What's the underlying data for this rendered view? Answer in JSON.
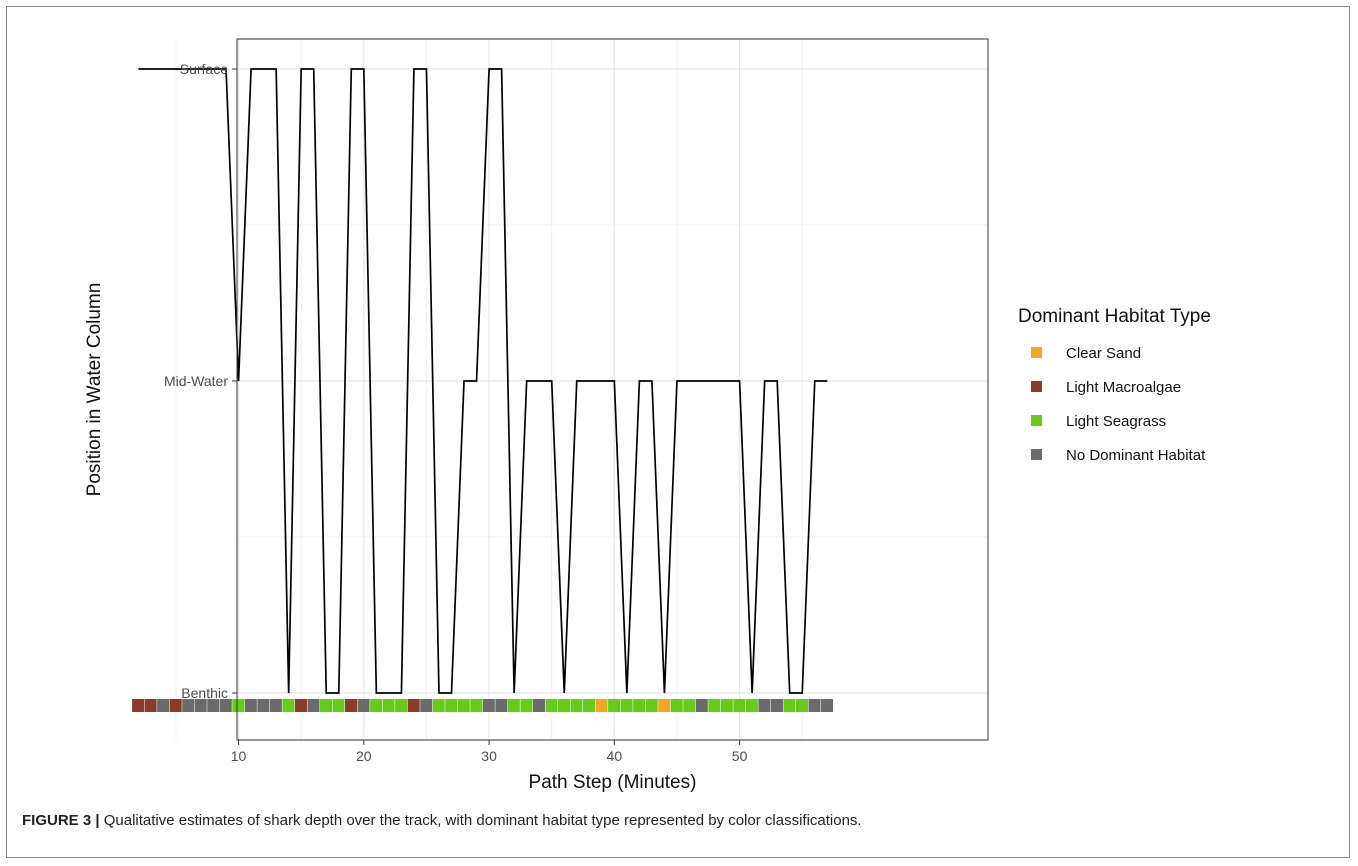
{
  "caption": {
    "label": "FIGURE 3 |",
    "text": " Qualitative estimates of shark depth over the track, with dominant habitat type represented by color classifications."
  },
  "chart_data": {
    "type": "line",
    "xlabel": "Path Step (Minutes)",
    "ylabel": "Position in Water Column",
    "xlim": [
      -1,
      60
    ],
    "x_ticks": [
      10,
      20,
      30,
      40,
      50
    ],
    "y_levels": [
      "Benthic",
      "Mid-Water",
      "Surface"
    ],
    "grid": true,
    "series": [
      {
        "x": [
          2,
          3,
          4,
          5,
          6,
          7,
          8,
          9,
          10,
          11,
          12,
          13,
          14,
          15,
          16,
          17,
          18,
          19,
          20,
          21,
          22,
          23,
          24,
          25,
          26,
          27,
          28,
          29,
          30,
          31,
          32,
          33,
          34,
          35,
          36,
          37,
          38,
          39,
          40,
          41,
          42,
          43,
          44,
          45,
          46,
          47,
          48,
          49,
          50,
          51,
          52,
          53,
          54,
          55,
          56,
          57
        ],
        "y": [
          "Surface",
          "Surface",
          "Surface",
          "Surface",
          "Surface",
          "Surface",
          "Surface",
          "Surface",
          "Mid-Water",
          "Surface",
          "Surface",
          "Surface",
          "Benthic",
          "Surface",
          "Surface",
          "Benthic",
          "Benthic",
          "Surface",
          "Surface",
          "Benthic",
          "Benthic",
          "Benthic",
          "Surface",
          "Surface",
          "Benthic",
          "Benthic",
          "Mid-Water",
          "Mid-Water",
          "Surface",
          "Surface",
          "Benthic",
          "Mid-Water",
          "Mid-Water",
          "Mid-Water",
          "Benthic",
          "Mid-Water",
          "Mid-Water",
          "Mid-Water",
          "Mid-Water",
          "Benthic",
          "Mid-Water",
          "Mid-Water",
          "Benthic",
          "Mid-Water",
          "Mid-Water",
          "Mid-Water",
          "Mid-Water",
          "Mid-Water",
          "Mid-Water",
          "Benthic",
          "Mid-Water",
          "Mid-Water",
          "Benthic",
          "Benthic",
          "Mid-Water",
          "Mid-Water"
        ],
        "color": "#000000"
      }
    ],
    "habitat_strip": {
      "x": [
        2,
        3,
        4,
        5,
        6,
        7,
        8,
        9,
        10,
        11,
        12,
        13,
        14,
        15,
        16,
        17,
        18,
        19,
        20,
        21,
        22,
        23,
        24,
        25,
        26,
        27,
        28,
        29,
        30,
        31,
        32,
        33,
        34,
        35,
        36,
        37,
        38,
        39,
        40,
        41,
        42,
        43,
        44,
        45,
        46,
        47,
        48,
        49,
        50,
        51,
        52,
        53,
        54,
        55,
        56,
        57
      ],
      "habitat": [
        "Light Macroalgae",
        "Light Macroalgae",
        "No Dominant Habitat",
        "Light Macroalgae",
        "No Dominant Habitat",
        "No Dominant Habitat",
        "No Dominant Habitat",
        "No Dominant Habitat",
        "Light Seagrass",
        "No Dominant Habitat",
        "No Dominant Habitat",
        "No Dominant Habitat",
        "Light Seagrass",
        "Light Macroalgae",
        "No Dominant Habitat",
        "Light Seagrass",
        "Light Seagrass",
        "Light Macroalgae",
        "No Dominant Habitat",
        "Light Seagrass",
        "Light Seagrass",
        "Light Seagrass",
        "Light Macroalgae",
        "No Dominant Habitat",
        "Light Seagrass",
        "Light Seagrass",
        "Light Seagrass",
        "Light Seagrass",
        "No Dominant Habitat",
        "No Dominant Habitat",
        "Light Seagrass",
        "Light Seagrass",
        "No Dominant Habitat",
        "Light Seagrass",
        "Light Seagrass",
        "Light Seagrass",
        "Light Seagrass",
        "Clear Sand",
        "Light Seagrass",
        "Light Seagrass",
        "Light Seagrass",
        "Light Seagrass",
        "Clear Sand",
        "Light Seagrass",
        "Light Seagrass",
        "No Dominant Habitat",
        "Light Seagrass",
        "Light Seagrass",
        "Light Seagrass",
        "Light Seagrass",
        "No Dominant Habitat",
        "No Dominant Habitat",
        "Light Seagrass",
        "Light Seagrass",
        "No Dominant Habitat",
        "No Dominant Habitat"
      ]
    },
    "legend": {
      "title": "Dominant Habitat Type",
      "placement": "right",
      "entries": [
        {
          "label": "Clear Sand",
          "color": "#F5A623"
        },
        {
          "label": "Light Macroalgae",
          "color": "#8B3A2B"
        },
        {
          "label": "Light Seagrass",
          "color": "#66CC1A"
        },
        {
          "label": "No Dominant Habitat",
          "color": "#6B6B6B"
        }
      ]
    },
    "colors": {
      "panel_border": "#333333",
      "gridline": "#e6e6e6",
      "line": "#000000"
    }
  }
}
